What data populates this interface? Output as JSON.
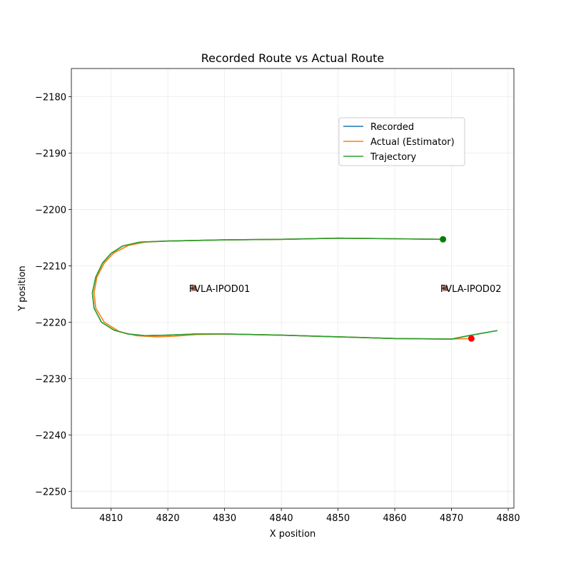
{
  "chart_data": {
    "type": "line",
    "title": "Recorded Route vs Actual Route",
    "xlabel": "X position",
    "ylabel": "Y position",
    "xlim": [
      4803,
      4881
    ],
    "ylim": [
      -2253,
      -2175
    ],
    "xticks": [
      4810,
      4820,
      4830,
      4840,
      4850,
      4860,
      4870,
      4880
    ],
    "yticks": [
      -2180,
      -2190,
      -2200,
      -2210,
      -2220,
      -2230,
      -2240,
      -2250
    ],
    "grid": true,
    "legend_position": "upper-right",
    "series": [
      {
        "name": "Recorded",
        "color": "#1f77b4",
        "points": [
          [
            4868.5,
            -2205.3
          ],
          [
            4860,
            -2205.2
          ],
          [
            4850,
            -2205.1
          ],
          [
            4840,
            -2205.3
          ],
          [
            4830,
            -2205.4
          ],
          [
            4820,
            -2205.6
          ],
          [
            4815,
            -2205.8
          ],
          [
            4812,
            -2206.5
          ],
          [
            4810,
            -2207.8
          ],
          [
            4808.5,
            -2209.5
          ],
          [
            4807.3,
            -2212
          ],
          [
            4806.7,
            -2214.8
          ],
          [
            4807,
            -2217.5
          ],
          [
            4808.3,
            -2220
          ],
          [
            4810.5,
            -2221.4
          ],
          [
            4813,
            -2222.1
          ],
          [
            4816,
            -2222.4
          ],
          [
            4820,
            -2222.3
          ],
          [
            4825,
            -2222.1
          ],
          [
            4830,
            -2222.1
          ],
          [
            4840,
            -2222.3
          ],
          [
            4850,
            -2222.6
          ],
          [
            4860,
            -2222.9
          ],
          [
            4870,
            -2223
          ],
          [
            4873,
            -2222.4
          ],
          [
            4878,
            -2221.5
          ]
        ]
      },
      {
        "name": "Actual (Estimator)",
        "color": "#ff7f0e",
        "points": [
          [
            4868.5,
            -2205.3
          ],
          [
            4860,
            -2205.2
          ],
          [
            4850,
            -2205.1
          ],
          [
            4840,
            -2205.3
          ],
          [
            4830,
            -2205.4
          ],
          [
            4820,
            -2205.6
          ],
          [
            4816,
            -2205.8
          ],
          [
            4813,
            -2206.4
          ],
          [
            4810.5,
            -2207.7
          ],
          [
            4808.8,
            -2209.5
          ],
          [
            4807.5,
            -2212
          ],
          [
            4807,
            -2214.8
          ],
          [
            4807.3,
            -2217.5
          ],
          [
            4808.8,
            -2220
          ],
          [
            4811.5,
            -2221.7
          ],
          [
            4814.5,
            -2222.4
          ],
          [
            4818,
            -2222.6
          ],
          [
            4821,
            -2222.5
          ],
          [
            4825,
            -2222.2
          ],
          [
            4830,
            -2222.1
          ],
          [
            4840,
            -2222.3
          ],
          [
            4850,
            -2222.6
          ],
          [
            4860,
            -2222.9
          ],
          [
            4870,
            -2223
          ],
          [
            4873.5,
            -2222.9
          ]
        ]
      },
      {
        "name": "Trajectory",
        "color": "#2ca02c",
        "points": [
          [
            4868.5,
            -2205.3
          ],
          [
            4860,
            -2205.2
          ],
          [
            4850,
            -2205.1
          ],
          [
            4840,
            -2205.3
          ],
          [
            4830,
            -2205.4
          ],
          [
            4820,
            -2205.6
          ],
          [
            4815,
            -2205.8
          ],
          [
            4812,
            -2206.5
          ],
          [
            4810,
            -2207.8
          ],
          [
            4808.5,
            -2209.5
          ],
          [
            4807.3,
            -2212
          ],
          [
            4806.7,
            -2214.8
          ],
          [
            4807,
            -2217.5
          ],
          [
            4808.3,
            -2220
          ],
          [
            4810.5,
            -2221.4
          ],
          [
            4813,
            -2222.1
          ],
          [
            4816,
            -2222.4
          ],
          [
            4820,
            -2222.3
          ],
          [
            4825,
            -2222.1
          ],
          [
            4830,
            -2222.1
          ],
          [
            4840,
            -2222.3
          ],
          [
            4850,
            -2222.6
          ],
          [
            4860,
            -2222.9
          ],
          [
            4870,
            -2223
          ],
          [
            4873,
            -2222.4
          ],
          [
            4878,
            -2221.5
          ]
        ]
      }
    ],
    "markers": [
      {
        "x": 4868.5,
        "y": -2205.3,
        "color": "#008000",
        "shape": "circle"
      },
      {
        "x": 4873.5,
        "y": -2222.9,
        "color": "#ff0000",
        "shape": "circle"
      }
    ],
    "annotations": [
      {
        "label": "FVLA-IPOD01",
        "x": 4824.6,
        "y": -2214.0,
        "marker_color": "#8c564b"
      },
      {
        "label": "FVLA-IPOD02",
        "x": 4868.9,
        "y": -2214.0,
        "marker_color": "#8c564b"
      }
    ]
  }
}
